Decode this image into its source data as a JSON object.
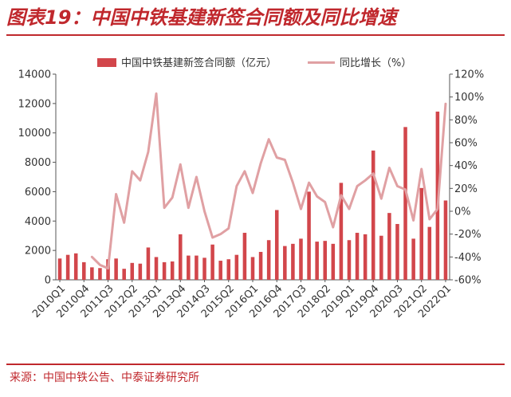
{
  "title": "图表19：中国中铁基建新签合同额及同比增速",
  "source": "来源：中国中铁公告、中泰证券研究所",
  "colors": {
    "bar": "#d2464b",
    "line": "#e0a0a3",
    "text": "#333333",
    "accent": "#c0282d"
  },
  "chart_data": {
    "type": "bar+line",
    "legend": {
      "position": "top"
    },
    "categories": [
      "2010Q1",
      "2010Q2",
      "2010Q3",
      "2010Q4",
      "2011Q1",
      "2011Q2",
      "2011Q3",
      "2011Q4",
      "2012Q1",
      "2012Q2",
      "2012Q3",
      "2012Q4",
      "2013Q1",
      "2013Q2",
      "2013Q3",
      "2013Q4",
      "2014Q1",
      "2014Q2",
      "2014Q3",
      "2014Q4",
      "2015Q1",
      "2015Q2",
      "2015Q3",
      "2015Q4",
      "2016Q1",
      "2016Q2",
      "2016Q3",
      "2016Q4",
      "2017Q1",
      "2017Q2",
      "2017Q3",
      "2017Q4",
      "2018Q1",
      "2018Q2",
      "2018Q3",
      "2018Q4",
      "2019Q1",
      "2019Q2",
      "2019Q3",
      "2019Q4",
      "2020Q1",
      "2020Q2",
      "2020Q3",
      "2020Q4",
      "2021Q1",
      "2021Q2",
      "2021Q3",
      "2021Q4",
      "2022Q1"
    ],
    "xtick_labels": [
      "2010Q1",
      "2010Q4",
      "2011Q3",
      "2012Q2",
      "2013Q1",
      "2013Q4",
      "2014Q3",
      "2015Q2",
      "2016Q1",
      "2016Q4",
      "2017Q3",
      "2018Q2",
      "2019Q1",
      "2019Q4",
      "2020Q3",
      "2021Q2",
      "2022Q1"
    ],
    "series": [
      {
        "name": "中国中铁基建新签合同额（亿元）",
        "type": "bar",
        "axis": "left",
        "values": [
          1450,
          1700,
          1800,
          1200,
          850,
          800,
          1400,
          1450,
          750,
          1150,
          1100,
          2200,
          1550,
          1200,
          1250,
          3100,
          1650,
          1650,
          1500,
          2400,
          1300,
          1400,
          1700,
          3200,
          1550,
          1900,
          2700,
          4750,
          2300,
          2450,
          2800,
          6000,
          2600,
          2650,
          2450,
          6600,
          2700,
          3200,
          3100,
          8800,
          3000,
          4550,
          3800,
          10400,
          2800,
          6250,
          3600,
          11450,
          5400
        ]
      },
      {
        "name": "同比增长（%）",
        "type": "line",
        "axis": "right",
        "values": [
          null,
          null,
          null,
          null,
          -40,
          -47,
          -50,
          15,
          -10,
          35,
          27,
          52,
          103,
          3,
          12,
          41,
          3,
          30,
          0,
          -23,
          -20,
          -15,
          22,
          35,
          16,
          42,
          63,
          47,
          45,
          25,
          2,
          25,
          13,
          8,
          -14,
          14,
          2,
          22,
          27,
          33,
          11,
          38,
          22,
          19,
          -8,
          37,
          -7,
          2,
          94
        ]
      }
    ],
    "yleft": {
      "min": 0,
      "max": 14000,
      "ticks": [
        0,
        2000,
        4000,
        6000,
        8000,
        10000,
        12000,
        14000
      ]
    },
    "yright": {
      "min": -60,
      "max": 120,
      "ticks": [
        -60,
        -40,
        -20,
        0,
        20,
        40,
        60,
        80,
        100,
        120
      ],
      "tick_labels": [
        "-60%",
        "-40%",
        "-20%",
        "0%",
        "20%",
        "40%",
        "60%",
        "80%",
        "100%",
        "120%"
      ]
    },
    "grid": false
  }
}
